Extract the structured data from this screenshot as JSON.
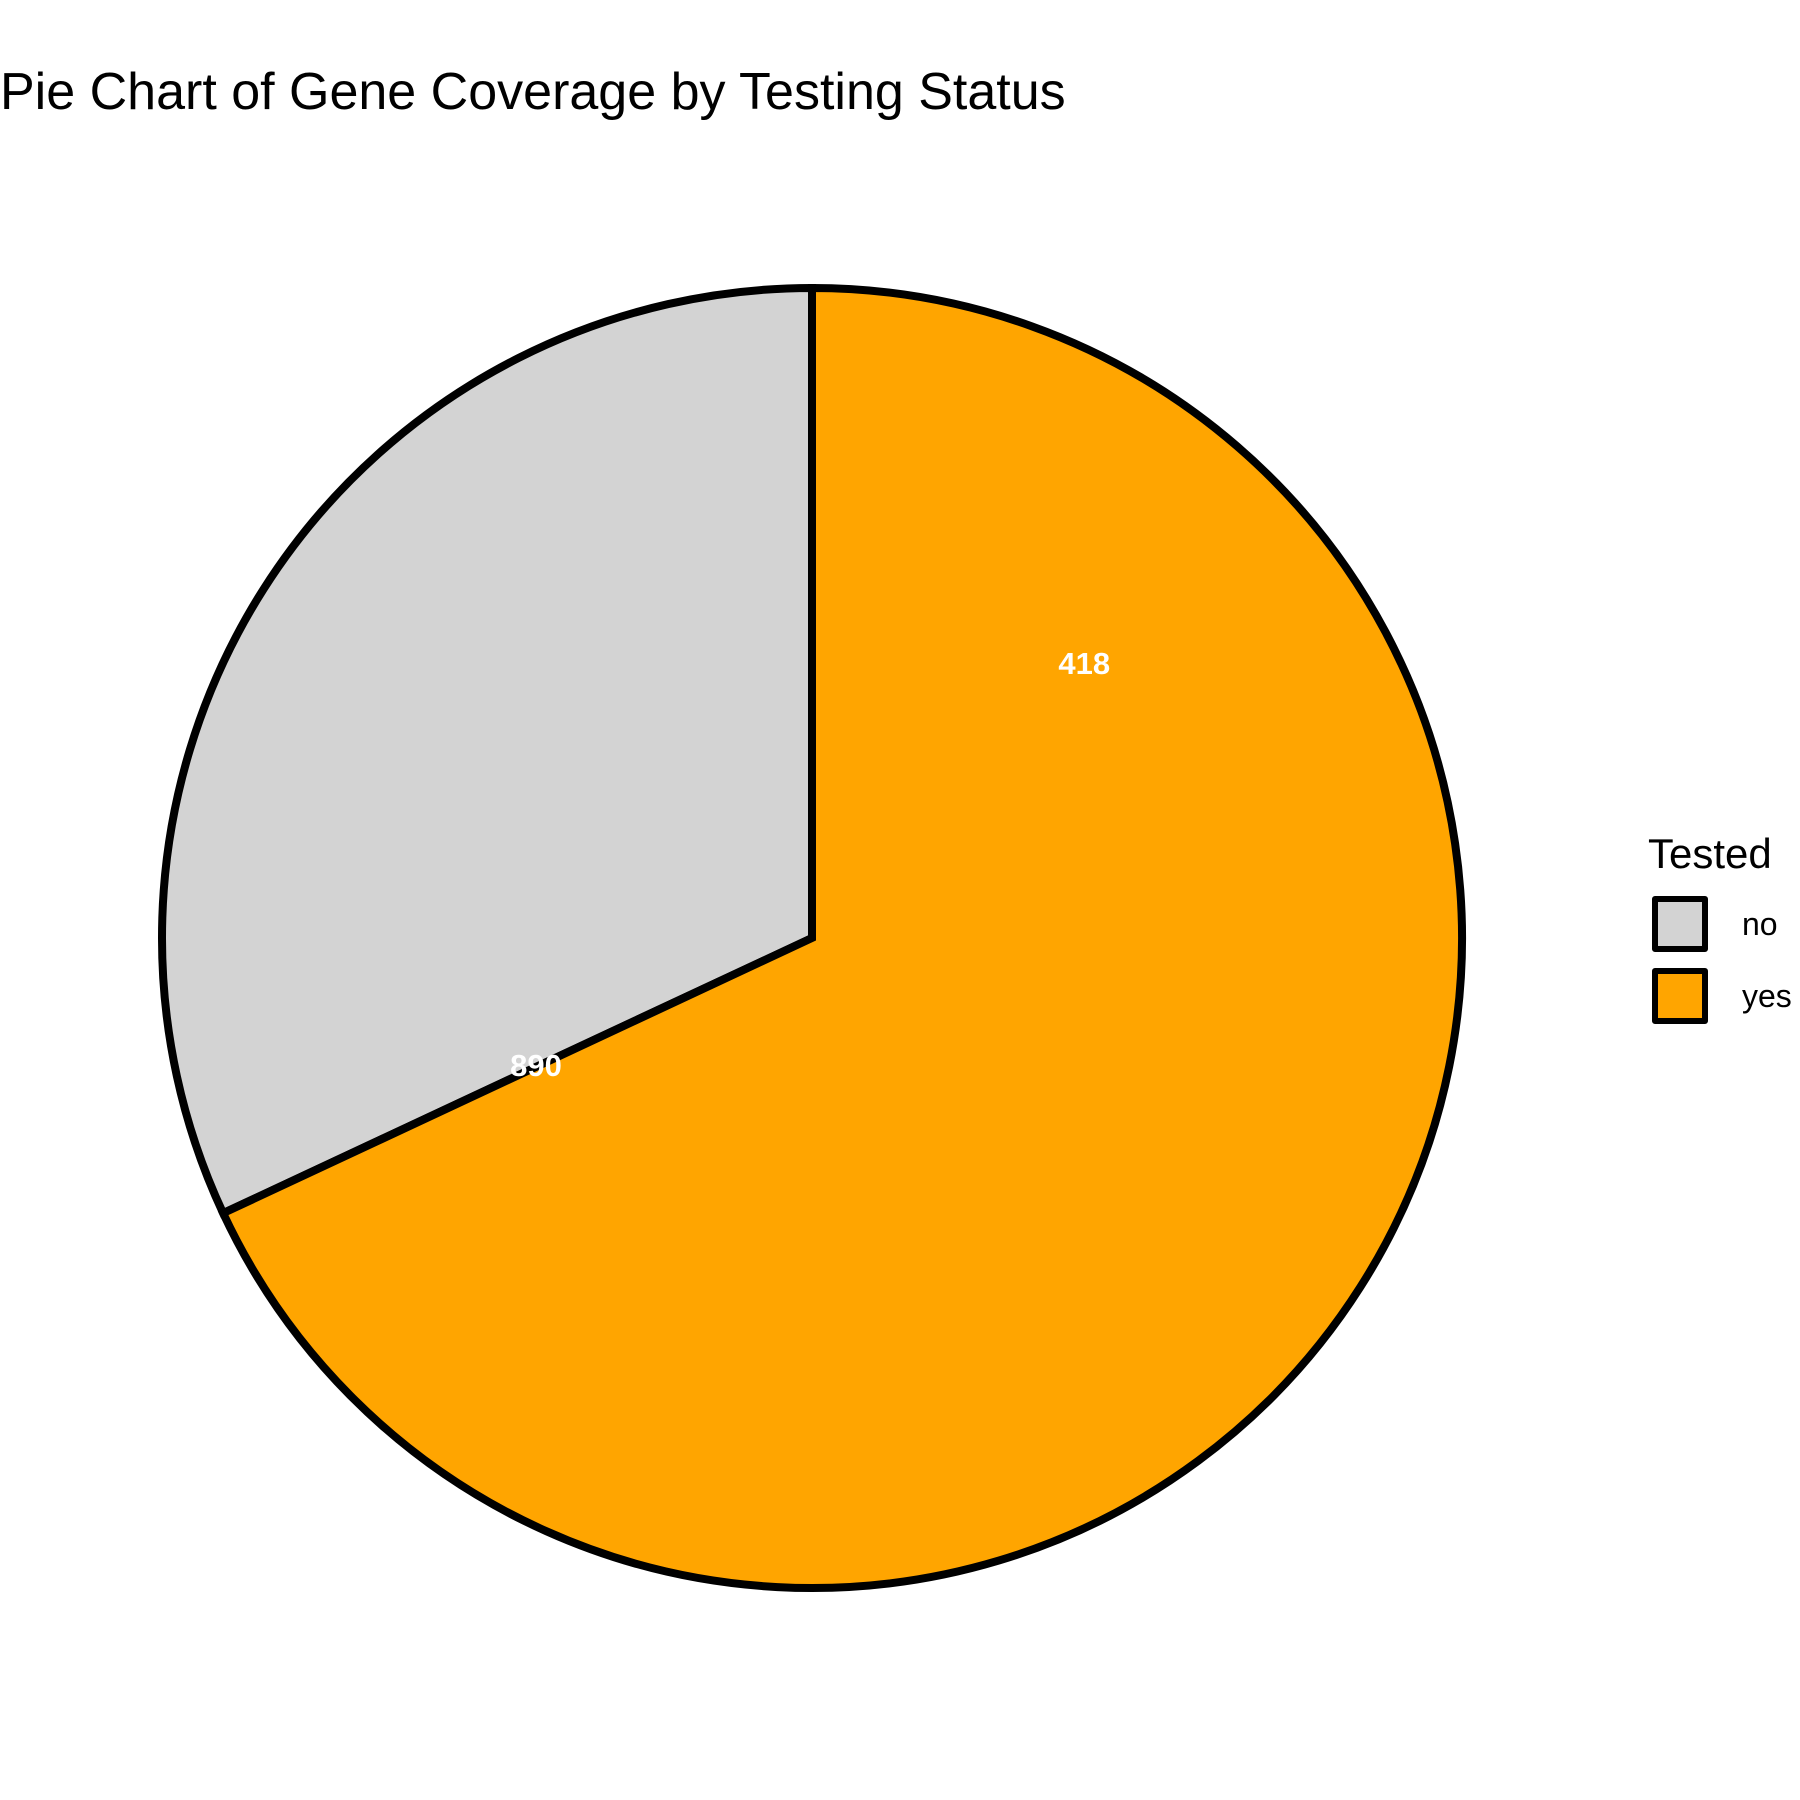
{
  "chart_data": {
    "type": "pie",
    "title": "Pie Chart of Gene Coverage by Testing Status",
    "legend": {
      "title": "Tested",
      "placement": "right"
    },
    "slices": [
      {
        "label": "no",
        "value": 418,
        "color": "#D3D3D3"
      },
      {
        "label": "yes",
        "value": 890,
        "color": "#FFA500"
      }
    ],
    "data_labels": [
      {
        "text": "418",
        "slice": "no"
      },
      {
        "text": "890",
        "slice": "yes"
      }
    ],
    "stroke_color": "#000000",
    "label_color": "#FFFFFF",
    "start": "top",
    "direction": "clockwise"
  }
}
